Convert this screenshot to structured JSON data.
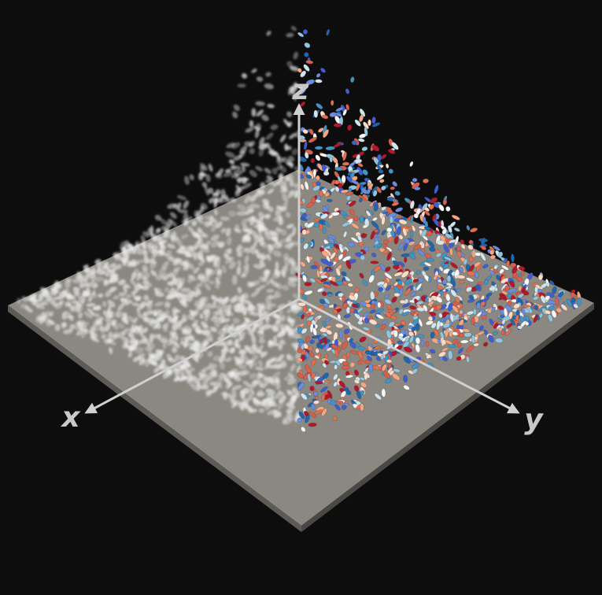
{
  "axes": {
    "z": "z",
    "x": "x",
    "y": "y"
  }
}
